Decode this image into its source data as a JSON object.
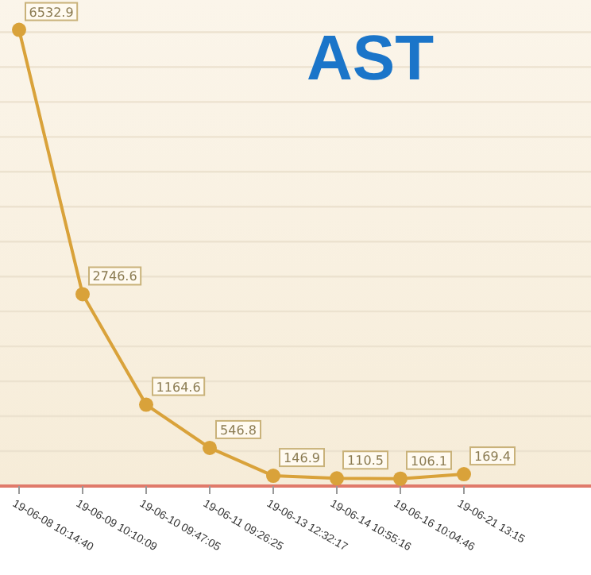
{
  "chart_data": {
    "type": "line",
    "title": "AST",
    "categories": [
      "19-06-08 10:14:40",
      "19-06-09 10:10:09",
      "19-06-10 09:47:05",
      "19-06-11 09:26:25",
      "19-06-13 12:32:17",
      "19-06-14 10:55:16",
      "19-06-16 10:04:46",
      "19-06-21 13:15"
    ],
    "series": [
      {
        "color": "#d9a23a",
        "values": [
          6532.9,
          2746.6,
          1164.6,
          546.8,
          146.9,
          110.5,
          106.1,
          169.4
        ]
      }
    ],
    "ylim": [
      0,
      6960
    ],
    "yticks": [
      {
        "value": 0,
        "label": null
      },
      {
        "value": 500,
        "label": null
      },
      {
        "value": 1000,
        "label": null
      },
      {
        "value": 1500,
        "label": null
      },
      {
        "value": 2000,
        "label": null
      },
      {
        "value": 2500,
        "label": null
      },
      {
        "value": 3000,
        "label": null
      },
      {
        "value": 3500,
        "label": null
      },
      {
        "value": 4000,
        "label": null
      },
      {
        "value": 4500,
        "label": null
      },
      {
        "value": 5000,
        "label": null
      },
      {
        "value": 5500,
        "label": null
      },
      {
        "value": 6000,
        "label": null
      },
      {
        "value": 6500,
        "label": null
      }
    ],
    "tick_labels": "x",
    "grid": "y",
    "data_labels": true,
    "marker": "circle",
    "line_style": "solid"
  }
}
